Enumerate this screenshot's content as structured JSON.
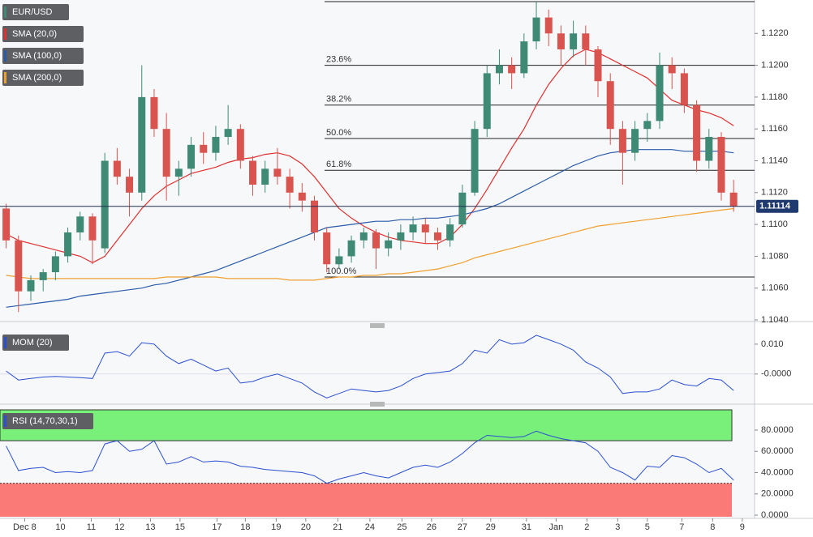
{
  "chart_data": {
    "type": "candlestick",
    "symbol": "EUR/USD",
    "up_color": "#3e8a74",
    "down_color": "#d9534f",
    "ylim": [
      1.1039,
      1.1241
    ],
    "yticks": [
      {
        "value": 1.104,
        "label": "1.1040"
      },
      {
        "value": 1.106,
        "label": "1.1060"
      },
      {
        "value": 1.108,
        "label": "1.1080"
      },
      {
        "value": 1.11,
        "label": "1.1100"
      },
      {
        "value": 1.112,
        "label": "1.1120"
      },
      {
        "value": 1.114,
        "label": "1.1140"
      },
      {
        "value": 1.116,
        "label": "1.1160"
      },
      {
        "value": 1.118,
        "label": "1.1180"
      },
      {
        "value": 1.12,
        "label": "1.1200"
      },
      {
        "value": 1.122,
        "label": "1.1220"
      }
    ],
    "xlim": [
      -0.5,
      60.7
    ],
    "xticks": [
      {
        "value": 1.5,
        "label": "Dec 8"
      },
      {
        "value": 4.4,
        "label": "10"
      },
      {
        "value": 6.9,
        "label": "11"
      },
      {
        "value": 9.2,
        "label": "12"
      },
      {
        "value": 11.7,
        "label": "13"
      },
      {
        "value": 14.1,
        "label": "15"
      },
      {
        "value": 17.1,
        "label": "17"
      },
      {
        "value": 19.4,
        "label": "18"
      },
      {
        "value": 21.9,
        "label": "19"
      },
      {
        "value": 24.3,
        "label": "20"
      },
      {
        "value": 26.9,
        "label": "21"
      },
      {
        "value": 29.5,
        "label": "24"
      },
      {
        "value": 32.1,
        "label": "25"
      },
      {
        "value": 34.5,
        "label": "26"
      },
      {
        "value": 37,
        "label": "27"
      },
      {
        "value": 39.3,
        "label": "29"
      },
      {
        "value": 42.2,
        "label": "31"
      },
      {
        "value": 44.6,
        "label": "Jan"
      },
      {
        "value": 47.1,
        "label": "2"
      },
      {
        "value": 49.6,
        "label": "3"
      },
      {
        "value": 52,
        "label": "5"
      },
      {
        "value": 54.8,
        "label": "7"
      },
      {
        "value": 57.3,
        "label": "8"
      },
      {
        "value": 59.7,
        "label": "9"
      }
    ],
    "open": [
      1.111,
      1.109,
      1.1058,
      1.1065,
      1.107,
      1.108,
      1.1095,
      1.1105,
      1.1085,
      1.114,
      1.113,
      1.112,
      1.118,
      1.116,
      1.113,
      1.1135,
      1.115,
      1.1145,
      1.1155,
      1.116,
      1.114,
      1.1125,
      1.1135,
      1.113,
      1.112,
      1.1115,
      1.1095,
      1.1075,
      1.108,
      1.109,
      1.1095,
      1.1085,
      1.109,
      1.1095,
      1.11,
      1.1095,
      1.109,
      1.11,
      1.112,
      1.116,
      1.1195,
      1.12,
      1.1195,
      1.1215,
      1.123,
      1.122,
      1.121,
      1.122,
      1.121,
      1.119,
      1.116,
      1.1145,
      1.116,
      1.1165,
      1.12,
      1.1195,
      1.1175,
      1.114,
      1.1155,
      1.112
    ],
    "high": [
      1.1113,
      1.1093,
      1.1068,
      1.1072,
      1.1083,
      1.1098,
      1.1108,
      1.1107,
      1.1145,
      1.1148,
      1.1135,
      1.12,
      1.1185,
      1.117,
      1.114,
      1.1155,
      1.1158,
      1.1162,
      1.1175,
      1.1163,
      1.1143,
      1.114,
      1.1148,
      1.1135,
      1.1126,
      1.1118,
      1.1098,
      1.1085,
      1.1093,
      1.1098,
      1.1097,
      1.1095,
      1.11,
      1.1105,
      1.1104,
      1.1098,
      1.1104,
      1.1125,
      1.1165,
      1.12,
      1.121,
      1.1205,
      1.122,
      1.124,
      1.1235,
      1.1225,
      1.1228,
      1.1225,
      1.1212,
      1.1195,
      1.1165,
      1.1165,
      1.117,
      1.1208,
      1.1205,
      1.1198,
      1.1178,
      1.116,
      1.1158,
      1.1128
    ],
    "low": [
      1.1085,
      1.1045,
      1.1052,
      1.1058,
      1.1065,
      1.1076,
      1.109,
      1.1075,
      1.1082,
      1.1125,
      1.1105,
      1.1115,
      1.1155,
      1.1115,
      1.1118,
      1.113,
      1.1138,
      1.114,
      1.115,
      1.1135,
      1.1118,
      1.112,
      1.1125,
      1.111,
      1.1108,
      1.109,
      1.107,
      1.1072,
      1.1076,
      1.1085,
      1.1072,
      1.108,
      1.1084,
      1.109,
      1.1088,
      1.1084,
      1.1086,
      1.1098,
      1.1118,
      1.1155,
      1.1188,
      1.1185,
      1.1192,
      1.121,
      1.1212,
      1.12,
      1.1205,
      1.12,
      1.118,
      1.115,
      1.1125,
      1.114,
      1.1152,
      1.116,
      1.1185,
      1.117,
      1.1133,
      1.1135,
      1.1115,
      1.1108
    ],
    "close": [
      1.109,
      1.1058,
      1.1065,
      1.107,
      1.108,
      1.1095,
      1.1105,
      1.109,
      1.114,
      1.113,
      1.112,
      1.118,
      1.116,
      1.113,
      1.1135,
      1.115,
      1.1145,
      1.1155,
      1.116,
      1.114,
      1.1125,
      1.1135,
      1.113,
      1.112,
      1.1115,
      1.1095,
      1.1075,
      1.108,
      1.109,
      1.1095,
      1.1085,
      1.109,
      1.1095,
      1.11,
      1.1095,
      1.109,
      1.11,
      1.112,
      1.116,
      1.1195,
      1.12,
      1.1195,
      1.1215,
      1.123,
      1.122,
      1.121,
      1.122,
      1.121,
      1.119,
      1.116,
      1.1145,
      1.116,
      1.1165,
      1.12,
      1.1195,
      1.1175,
      1.114,
      1.1155,
      1.112,
      1.11114
    ],
    "last_price": 1.11114,
    "series": [
      {
        "name": "SMA (20,0)",
        "color": "#e03030",
        "values": [
          1.1094,
          1.109,
          1.1088,
          1.1086,
          1.1084,
          1.1082,
          1.108,
          1.1076,
          1.108,
          1.109,
          1.11,
          1.111,
          1.1118,
          1.1124,
          1.1128,
          1.1132,
          1.1134,
          1.1136,
          1.1139,
          1.1141,
          1.1142,
          1.1144,
          1.1145,
          1.1143,
          1.1138,
          1.113,
          1.112,
          1.111,
          1.1104,
          1.1099,
          1.1095,
          1.1092,
          1.109,
          1.1089,
          1.1088,
          1.1088,
          1.1092,
          1.11,
          1.111,
          1.1122,
          1.1135,
          1.1148,
          1.116,
          1.1175,
          1.1188,
          1.1198,
          1.1206,
          1.121,
          1.1208,
          1.1204,
          1.12,
          1.1196,
          1.1192,
          1.1185,
          1.1178,
          1.1175,
          1.1172,
          1.117,
          1.1167,
          1.1162
        ]
      },
      {
        "name": "SMA (100,0)",
        "color": "#2a5ba8",
        "values": [
          1.1048,
          1.1049,
          1.105,
          1.1051,
          1.1052,
          1.1053,
          1.1055,
          1.1056,
          1.1057,
          1.1058,
          1.1059,
          1.106,
          1.1062,
          1.1063,
          1.1065,
          1.1067,
          1.1069,
          1.1071,
          1.1074,
          1.1077,
          1.108,
          1.1083,
          1.1086,
          1.1089,
          1.1092,
          1.1095,
          1.1098,
          1.1099,
          1.11,
          1.1101,
          1.1102,
          1.1102,
          1.1103,
          1.1103,
          1.1104,
          1.1104,
          1.1105,
          1.1106,
          1.1108,
          1.111,
          1.1113,
          1.1117,
          1.1121,
          1.1125,
          1.1129,
          1.1133,
          1.1137,
          1.114,
          1.1143,
          1.1145,
          1.1146,
          1.1147,
          1.1147,
          1.1147,
          1.1147,
          1.1146,
          1.1146,
          1.1146,
          1.1146,
          1.1145
        ]
      },
      {
        "name": "SMA (200,0)",
        "color": "#f0a030",
        "values": [
          1.1068,
          1.1067,
          1.1066,
          1.1066,
          1.1066,
          1.1066,
          1.1066,
          1.1066,
          1.1066,
          1.1066,
          1.1066,
          1.1066,
          1.1066,
          1.1067,
          1.1067,
          1.1067,
          1.1067,
          1.1067,
          1.1066,
          1.1066,
          1.1066,
          1.1066,
          1.1066,
          1.1065,
          1.1065,
          1.1065,
          1.1066,
          1.1067,
          1.1067,
          1.1068,
          1.1068,
          1.1069,
          1.1069,
          1.107,
          1.1071,
          1.1072,
          1.1074,
          1.1076,
          1.1079,
          1.1081,
          1.1083,
          1.1085,
          1.1087,
          1.1089,
          1.1091,
          1.1093,
          1.1095,
          1.1097,
          1.1099,
          1.11,
          1.1101,
          1.1102,
          1.1103,
          1.1104,
          1.1105,
          1.1106,
          1.1107,
          1.1108,
          1.1109,
          1.111
        ]
      }
    ],
    "fibonacci": [
      {
        "value": 1.124
      },
      {
        "value": 1.12,
        "label": "23.6%"
      },
      {
        "value": 1.1175,
        "label": "38.2%"
      },
      {
        "value": 1.1154,
        "label": "50.0%"
      },
      {
        "value": 1.1134,
        "label": "61.8%"
      },
      {
        "value": 1.1067,
        "label": "100.0%"
      }
    ],
    "mom": {
      "name": "MOM (20)",
      "color": "#2a4fd0",
      "ylim": [
        -0.009,
        0.0154
      ],
      "yticks": [
        {
          "value": 0,
          "label": "-0.0000"
        },
        {
          "value": 0.01,
          "label": "0.010"
        }
      ],
      "values": [
        0.001,
        -0.002,
        -0.0015,
        -0.001,
        -0.0008,
        -0.001,
        -0.0012,
        -0.0015,
        0.007,
        0.0075,
        0.006,
        0.0105,
        0.01,
        0.006,
        0.0035,
        0.005,
        0.003,
        0.001,
        0.002,
        -0.003,
        -0.0025,
        -0.001,
        0.0,
        -0.0015,
        -0.003,
        -0.006,
        -0.008,
        -0.0065,
        -0.005,
        -0.0055,
        -0.006,
        -0.0055,
        -0.004,
        -0.0015,
        0.0,
        0.0005,
        0.001,
        0.0035,
        0.008,
        0.007,
        0.0115,
        0.01,
        0.0105,
        0.013,
        0.0115,
        0.01,
        0.008,
        0.004,
        0.002,
        -0.001,
        -0.0065,
        -0.006,
        -0.006,
        -0.005,
        -0.002,
        -0.0035,
        -0.004,
        -0.0015,
        -0.002,
        -0.0055
      ]
    },
    "rsi": {
      "name": "RSI (14,70,30,1)",
      "color": "#2a4fd0",
      "ylim": [
        -3,
        101.3
      ],
      "overbought": 70,
      "oversold": 30,
      "yticks": [
        {
          "value": 0,
          "label": "0.0000"
        },
        {
          "value": 20,
          "label": "20.0000"
        },
        {
          "value": 40,
          "label": "40.0000"
        },
        {
          "value": 60,
          "label": "60.0000"
        },
        {
          "value": 80,
          "label": "80.0000"
        }
      ],
      "values": [
        65,
        42,
        44,
        45,
        40,
        41,
        40,
        42,
        67,
        70,
        60,
        62,
        70,
        48,
        50,
        55,
        50,
        51,
        50,
        46,
        45,
        43,
        42,
        41,
        40,
        37,
        30,
        34,
        37,
        40,
        37,
        35,
        40,
        45,
        47,
        45,
        50,
        58,
        68,
        75,
        74,
        73,
        74,
        79,
        75,
        72,
        70,
        68,
        60,
        45,
        40,
        33,
        46,
        45,
        56,
        54,
        48,
        40,
        44,
        33
      ]
    }
  }
}
